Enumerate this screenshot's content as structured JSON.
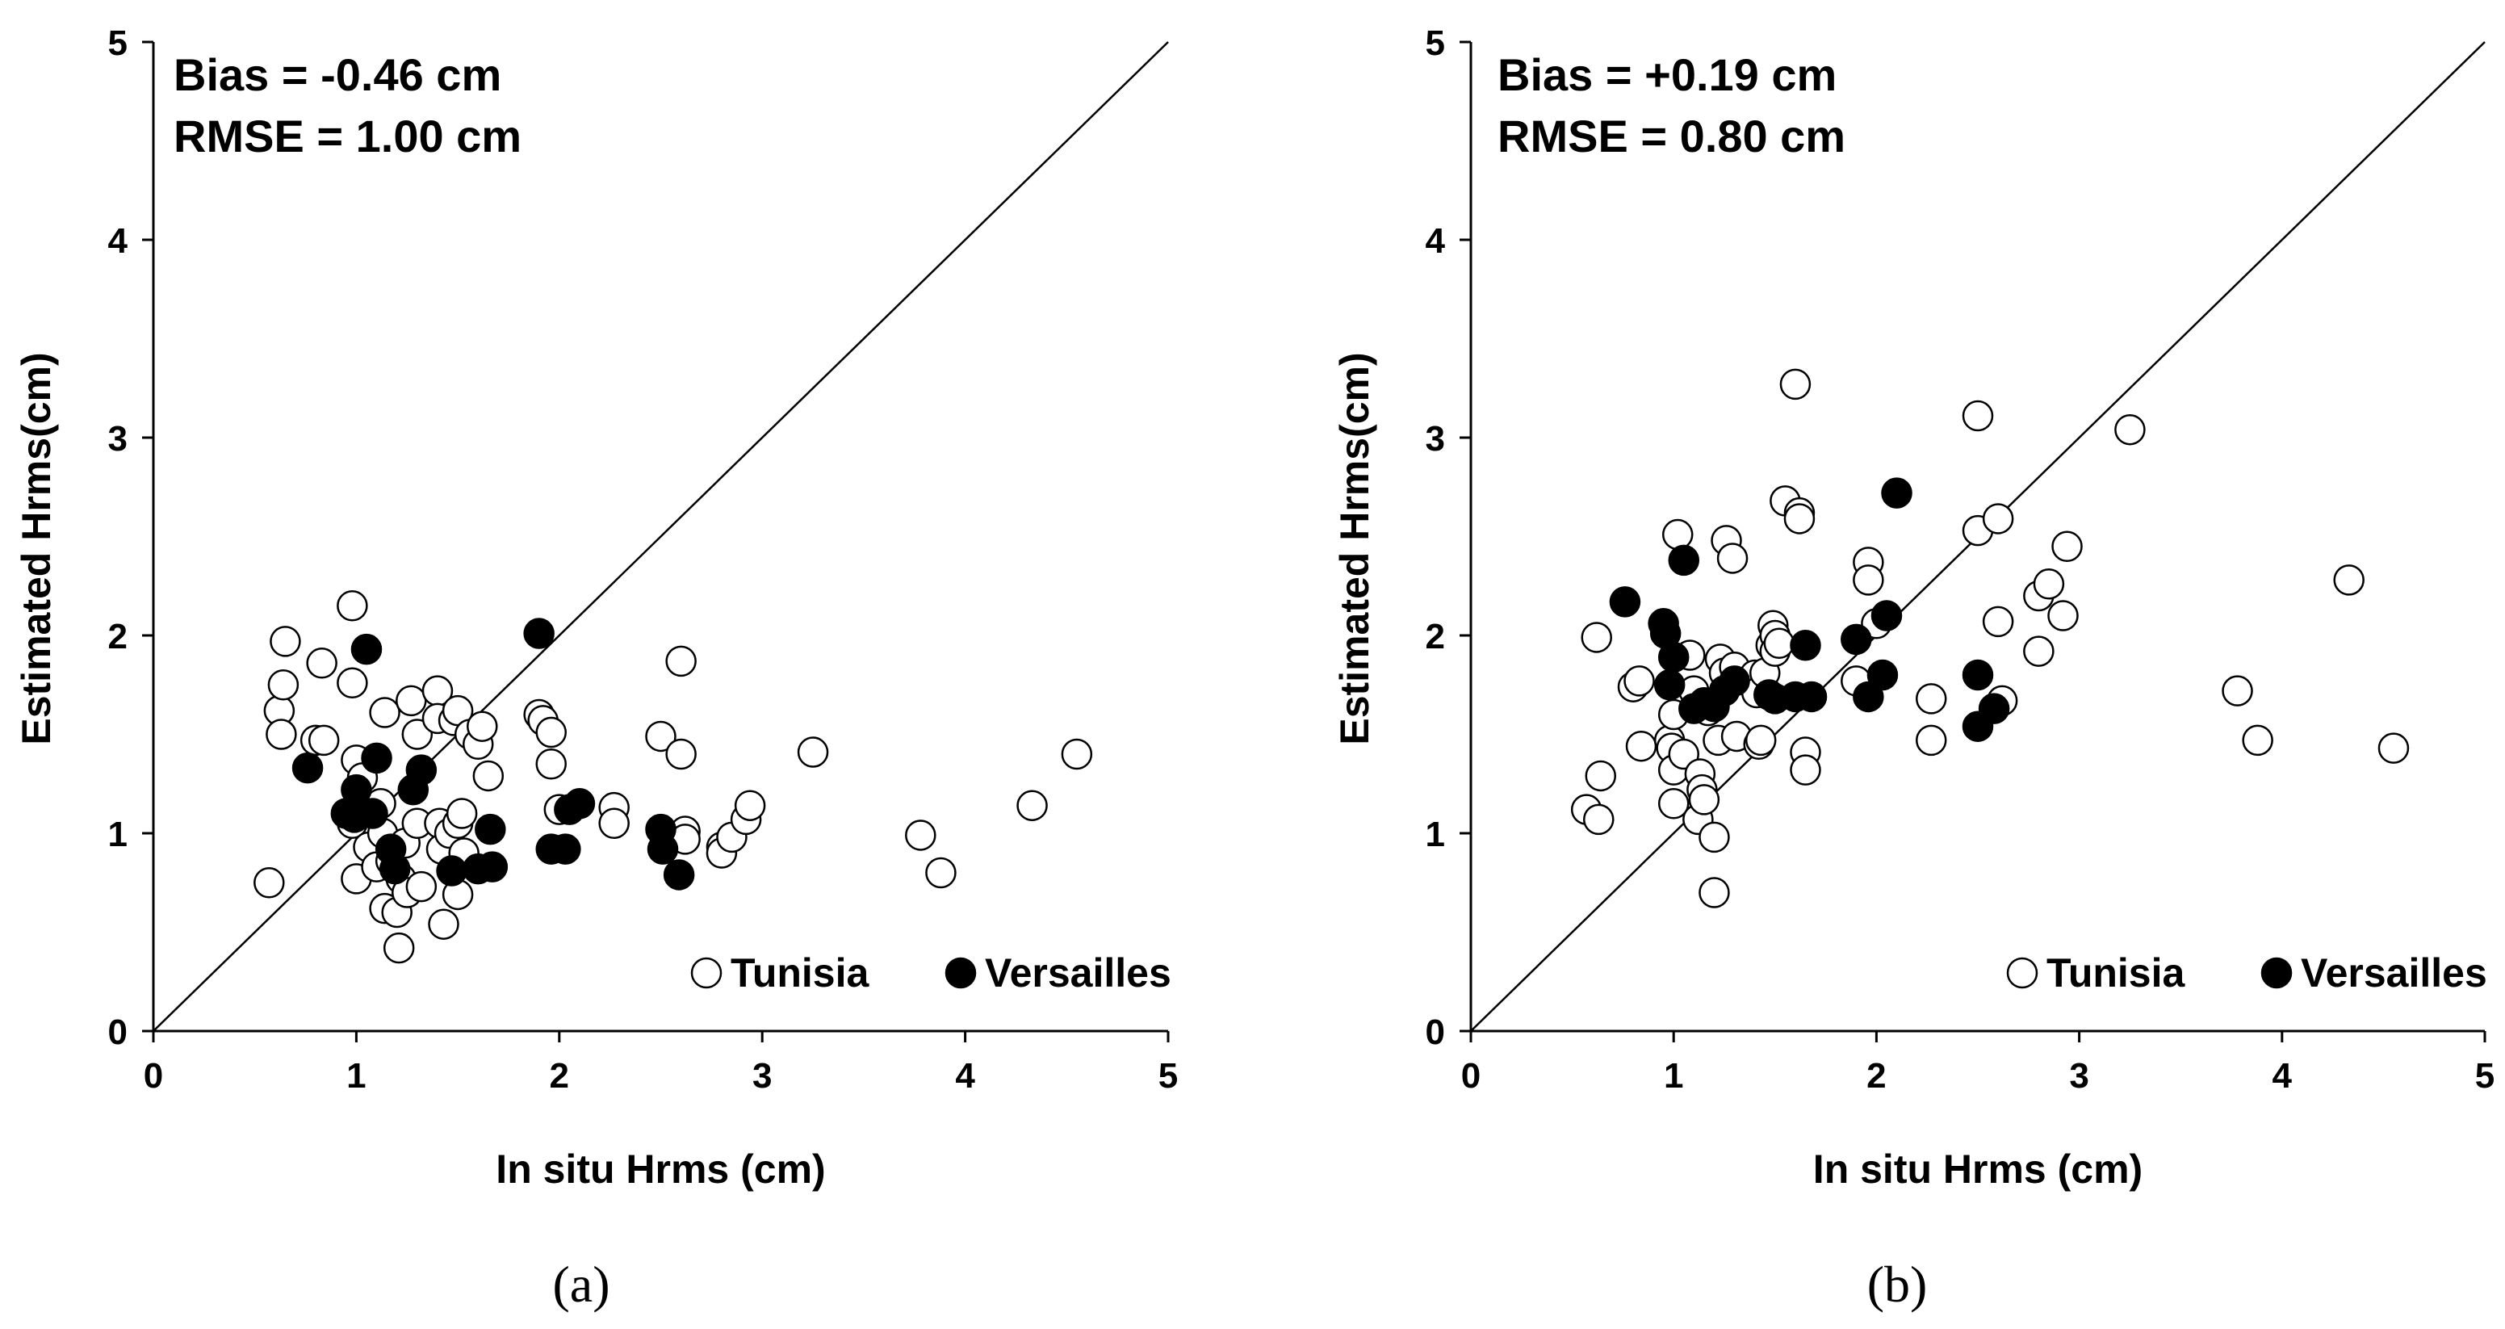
{
  "chart_data": [
    {
      "type": "scatter",
      "panel_label": "(a)",
      "annotations": [
        "Bias = -0.46 cm",
        "RMSE = 1.00 cm"
      ],
      "xlabel": "In situ Hrms (cm)",
      "ylabel": "Estimated Hrms(cm)",
      "xlim": [
        0,
        5
      ],
      "ylim": [
        0,
        5
      ],
      "xticks": [
        "0",
        "1",
        "2",
        "3",
        "4",
        "5"
      ],
      "yticks": [
        "0",
        "1",
        "2",
        "3",
        "4",
        "5"
      ],
      "reference_line": "1:1",
      "legend_position": "bottom-right",
      "series": [
        {
          "name": "Tunisia",
          "marker": "open-circle",
          "points": [
            [
              0.57,
              0.75
            ],
            [
              0.62,
              1.62
            ],
            [
              0.63,
              1.5
            ],
            [
              0.64,
              1.75
            ],
            [
              0.65,
              1.97
            ],
            [
              0.8,
              1.47
            ],
            [
              0.83,
              1.86
            ],
            [
              0.84,
              1.47
            ],
            [
              0.98,
              2.15
            ],
            [
              0.98,
              1.76
            ],
            [
              0.98,
              1.05
            ],
            [
              1.0,
              1.37
            ],
            [
              1.0,
              0.77
            ],
            [
              1.03,
              1.28
            ],
            [
              1.04,
              1.14
            ],
            [
              1.06,
              0.93
            ],
            [
              1.1,
              0.83
            ],
            [
              1.12,
              1.15
            ],
            [
              1.13,
              1.0
            ],
            [
              1.14,
              1.61
            ],
            [
              1.14,
              0.62
            ],
            [
              1.17,
              0.86
            ],
            [
              1.2,
              0.6
            ],
            [
              1.21,
              0.42
            ],
            [
              1.22,
              0.77
            ],
            [
              1.24,
              0.95
            ],
            [
              1.25,
              0.7
            ],
            [
              1.27,
              1.67
            ],
            [
              1.3,
              1.5
            ],
            [
              1.3,
              1.05
            ],
            [
              1.32,
              0.73
            ],
            [
              1.4,
              1.72
            ],
            [
              1.4,
              1.58
            ],
            [
              1.41,
              1.05
            ],
            [
              1.42,
              0.92
            ],
            [
              1.43,
              0.54
            ],
            [
              1.46,
              1.0
            ],
            [
              1.48,
              1.57
            ],
            [
              1.5,
              1.62
            ],
            [
              1.5,
              1.05
            ],
            [
              1.5,
              0.69
            ],
            [
              1.52,
              1.1
            ],
            [
              1.53,
              0.9
            ],
            [
              1.56,
              1.5
            ],
            [
              1.6,
              1.45
            ],
            [
              1.62,
              1.54
            ],
            [
              1.65,
              1.29
            ],
            [
              1.9,
              1.6
            ],
            [
              1.92,
              1.57
            ],
            [
              1.96,
              1.51
            ],
            [
              1.96,
              1.35
            ],
            [
              2.0,
              1.12
            ],
            [
              2.27,
              1.13
            ],
            [
              2.27,
              1.05
            ],
            [
              2.5,
              1.49
            ],
            [
              2.6,
              1.87
            ],
            [
              2.6,
              1.4
            ],
            [
              2.62,
              1.01
            ],
            [
              2.62,
              0.97
            ],
            [
              2.8,
              0.93
            ],
            [
              2.8,
              0.9
            ],
            [
              2.85,
              0.98
            ],
            [
              2.92,
              1.07
            ],
            [
              2.94,
              1.14
            ],
            [
              3.25,
              1.41
            ],
            [
              3.78,
              0.99
            ],
            [
              3.88,
              0.8
            ],
            [
              4.33,
              1.14
            ],
            [
              4.55,
              1.4
            ]
          ]
        },
        {
          "name": "Versailles",
          "marker": "filled-circle",
          "points": [
            [
              0.76,
              1.33
            ],
            [
              0.95,
              1.1
            ],
            [
              0.99,
              1.08
            ],
            [
              1.0,
              1.22
            ],
            [
              1.05,
              1.93
            ],
            [
              1.08,
              1.1
            ],
            [
              1.1,
              1.38
            ],
            [
              1.17,
              0.92
            ],
            [
              1.19,
              0.82
            ],
            [
              1.28,
              1.22
            ],
            [
              1.32,
              1.32
            ],
            [
              1.47,
              0.81
            ],
            [
              1.6,
              0.82
            ],
            [
              1.66,
              1.02
            ],
            [
              1.67,
              0.83
            ],
            [
              1.9,
              2.01
            ],
            [
              1.96,
              0.92
            ],
            [
              2.03,
              0.92
            ],
            [
              2.05,
              1.12
            ],
            [
              2.1,
              1.15
            ],
            [
              2.5,
              1.02
            ],
            [
              2.51,
              0.92
            ],
            [
              2.59,
              0.79
            ]
          ]
        }
      ]
    },
    {
      "type": "scatter",
      "panel_label": "(b)",
      "annotations": [
        "Bias = +0.19 cm",
        "RMSE = 0.80 cm"
      ],
      "xlabel": "In situ Hrms (cm)",
      "ylabel": "Estimated Hrms(cm)",
      "xlim": [
        0,
        5
      ],
      "ylim": [
        0,
        5
      ],
      "xticks": [
        "0",
        "1",
        "2",
        "3",
        "4",
        "5"
      ],
      "yticks": [
        "0",
        "1",
        "2",
        "3",
        "4",
        "5"
      ],
      "reference_line": "1:1",
      "legend_position": "bottom-right",
      "series": [
        {
          "name": "Tunisia",
          "marker": "open-circle",
          "points": [
            [
              0.57,
              1.12
            ],
            [
              0.62,
              1.99
            ],
            [
              0.63,
              1.07
            ],
            [
              0.64,
              1.29
            ],
            [
              0.8,
              1.74
            ],
            [
              0.83,
              1.77
            ],
            [
              0.84,
              1.44
            ],
            [
              0.98,
              1.47
            ],
            [
              0.99,
              1.43
            ],
            [
              1.0,
              1.6
            ],
            [
              1.0,
              1.32
            ],
            [
              1.0,
              1.15
            ],
            [
              1.02,
              2.51
            ],
            [
              1.05,
              1.4
            ],
            [
              1.08,
              1.9
            ],
            [
              1.1,
              1.72
            ],
            [
              1.12,
              1.07
            ],
            [
              1.13,
              1.3
            ],
            [
              1.14,
              1.22
            ],
            [
              1.15,
              1.17
            ],
            [
              1.17,
              1.62
            ],
            [
              1.2,
              0.98
            ],
            [
              1.2,
              0.7
            ],
            [
              1.22,
              1.47
            ],
            [
              1.23,
              1.88
            ],
            [
              1.25,
              1.81
            ],
            [
              1.26,
              2.48
            ],
            [
              1.29,
              2.39
            ],
            [
              1.3,
              1.84
            ],
            [
              1.31,
              1.49
            ],
            [
              1.4,
              1.8
            ],
            [
              1.41,
              1.71
            ],
            [
              1.42,
              1.45
            ],
            [
              1.43,
              1.47
            ],
            [
              1.45,
              1.81
            ],
            [
              1.48,
              1.95
            ],
            [
              1.49,
              2.05
            ],
            [
              1.5,
              2.0
            ],
            [
              1.5,
              1.92
            ],
            [
              1.52,
              1.96
            ],
            [
              1.55,
              2.68
            ],
            [
              1.6,
              3.27
            ],
            [
              1.62,
              2.62
            ],
            [
              1.62,
              2.59
            ],
            [
              1.65,
              1.41
            ],
            [
              1.65,
              1.32
            ],
            [
              1.9,
              1.77
            ],
            [
              1.96,
              2.37
            ],
            [
              1.96,
              2.28
            ],
            [
              2.0,
              2.06
            ],
            [
              2.27,
              1.68
            ],
            [
              2.27,
              1.47
            ],
            [
              2.5,
              3.11
            ],
            [
              2.5,
              2.53
            ],
            [
              2.6,
              2.59
            ],
            [
              2.6,
              2.07
            ],
            [
              2.62,
              1.67
            ],
            [
              2.8,
              2.2
            ],
            [
              2.8,
              1.92
            ],
            [
              2.85,
              2.26
            ],
            [
              2.92,
              2.1
            ],
            [
              2.94,
              2.45
            ],
            [
              3.25,
              3.04
            ],
            [
              3.78,
              1.72
            ],
            [
              3.88,
              1.47
            ],
            [
              4.33,
              2.28
            ],
            [
              4.55,
              1.43
            ]
          ]
        },
        {
          "name": "Versailles",
          "marker": "filled-circle",
          "points": [
            [
              0.76,
              2.17
            ],
            [
              0.95,
              2.06
            ],
            [
              0.96,
              2.01
            ],
            [
              0.98,
              1.75
            ],
            [
              1.0,
              1.89
            ],
            [
              1.05,
              2.38
            ],
            [
              1.1,
              1.63
            ],
            [
              1.15,
              1.66
            ],
            [
              1.2,
              1.64
            ],
            [
              1.25,
              1.72
            ],
            [
              1.3,
              1.77
            ],
            [
              1.47,
              1.7
            ],
            [
              1.5,
              1.68
            ],
            [
              1.6,
              1.69
            ],
            [
              1.65,
              1.95
            ],
            [
              1.68,
              1.69
            ],
            [
              1.9,
              1.98
            ],
            [
              1.96,
              1.69
            ],
            [
              2.03,
              1.8
            ],
            [
              2.05,
              2.1
            ],
            [
              2.1,
              2.72
            ],
            [
              2.5,
              1.8
            ],
            [
              2.5,
              1.54
            ],
            [
              2.58,
              1.63
            ]
          ]
        }
      ]
    }
  ]
}
